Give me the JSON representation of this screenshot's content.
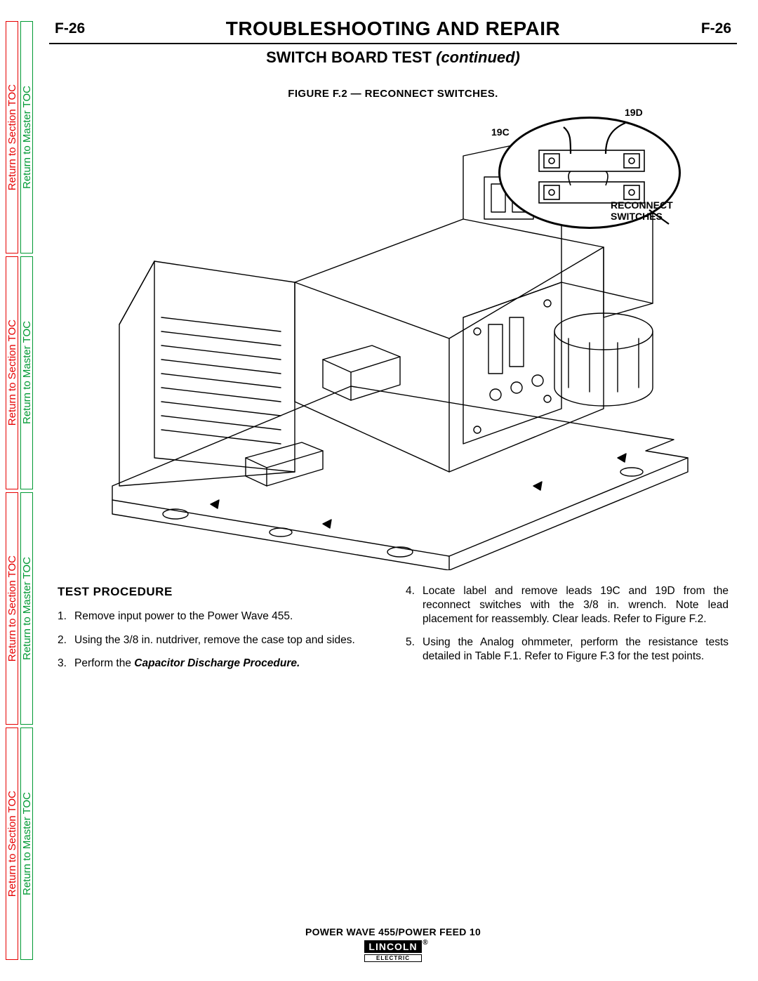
{
  "sideTabs": {
    "sectionLabel": "Return to Section TOC",
    "masterLabel": "Return to Master TOC",
    "sectionColor": "#e60000",
    "masterColor": "#009933",
    "repeats": 4
  },
  "header": {
    "pageLeft": "F-26",
    "title": "TROUBLESHOOTING AND REPAIR",
    "pageRight": "F-26"
  },
  "subtitle": {
    "main": "SWITCH  BOARD TEST",
    "suffix": "(continued)"
  },
  "figure": {
    "caption": "FIGURE  F.2 — RECONNECT  SWITCHES.",
    "label19C": "19C",
    "label19D": "19D",
    "reconnectLabel1": "RECONNECT",
    "reconnectLabel2": "SWITCHES"
  },
  "procedure": {
    "title": "TEST  PROCEDURE",
    "leftSteps": [
      {
        "pre": "Remove input power to the Power Wave 455."
      },
      {
        "pre": "Using the 3/8 in. nutdriver, remove the case top and sides."
      },
      {
        "pre": "Perform the ",
        "bi": "Capacitor Discharge Procedure."
      }
    ],
    "rightStart": 4,
    "rightSteps": [
      {
        "pre": "Locate label and remove leads 19C and 19D from the reconnect switches with the 3/8 in. wrench.  Note lead placement for reassembly. Clear leads. Refer to Figure F.2."
      },
      {
        "pre": "Using the Analog ohmmeter, perform the resistance tests detailed in Table F.1. Refer to Figure F.3 for the test points."
      }
    ]
  },
  "footer": {
    "text": "POWER WAVE 455/POWER FEED 10",
    "brandTop": "LINCOLN",
    "brandBot": "ELECTRIC",
    "reg": "®"
  },
  "illustration": {
    "strokeColor": "#000000",
    "strokeWidth": 1.4,
    "thickWidth": 2.4
  }
}
